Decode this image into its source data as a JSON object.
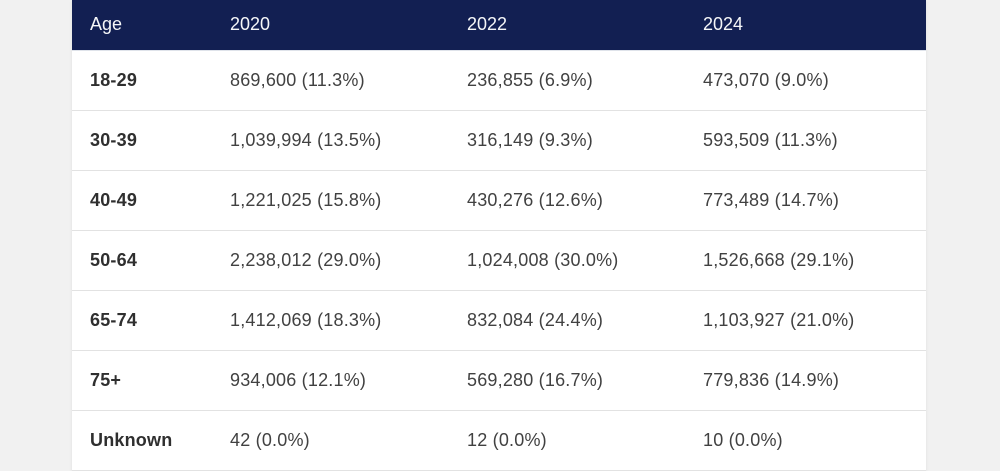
{
  "colors": {
    "header_bg": "#121f52",
    "header_text": "#f5f6f8",
    "page_bg": "#f1f1f1",
    "row_bg": "#ffffff",
    "row_border": "#e2e2e2",
    "data_text": "#414141",
    "label_text": "#2f2f2f"
  },
  "chart_data": {
    "type": "table",
    "title": "",
    "columns": [
      "Age",
      "2020",
      "2022",
      "2024"
    ],
    "rows": [
      [
        "18-29",
        "869,600 (11.3%)",
        "236,855 (6.9%)",
        "473,070 (9.0%)"
      ],
      [
        "30-39",
        "1,039,994 (13.5%)",
        "316,149 (9.3%)",
        "593,509 (11.3%)"
      ],
      [
        "40-49",
        "1,221,025 (15.8%)",
        "430,276 (12.6%)",
        "773,489 (14.7%)"
      ],
      [
        "50-64",
        "2,238,012 (29.0%)",
        "1,024,008 (30.0%)",
        "1,526,668 (29.1%)"
      ],
      [
        "65-74",
        "1,412,069 (18.3%)",
        "832,084 (24.4%)",
        "1,103,927 (21.0%)"
      ],
      [
        "75+",
        "934,006 (12.1%)",
        "569,280 (16.7%)",
        "779,836 (14.9%)"
      ],
      [
        "Unknown",
        "42 (0.0%)",
        "12 (0.0%)",
        "10 (0.0%)"
      ]
    ]
  }
}
